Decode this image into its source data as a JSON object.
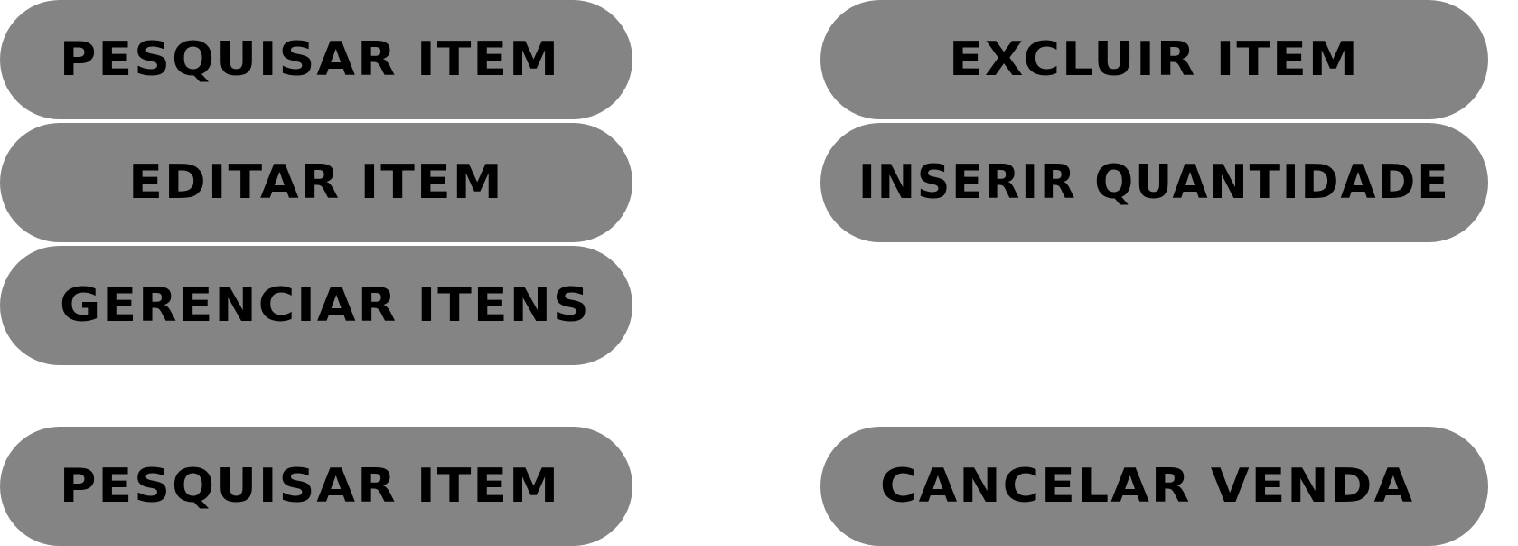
{
  "buttons": {
    "pesquisar_item_top": "PESQUISAR ITEM",
    "editar_item": "EDITAR ITEM",
    "gerenciar_itens": "GERENCIAR ITENS",
    "pesquisar_item_bottom": "PESQUISAR ITEM",
    "excluir_item": "EXCLUIR ITEM",
    "inserir_quantidade": "INSERIR QUANTIDADE",
    "cancelar_venda": "CANCELAR VENDA"
  },
  "colors": {
    "button_bg": "#848484",
    "button_text": "#000000",
    "page_bg": "#ffffff"
  }
}
